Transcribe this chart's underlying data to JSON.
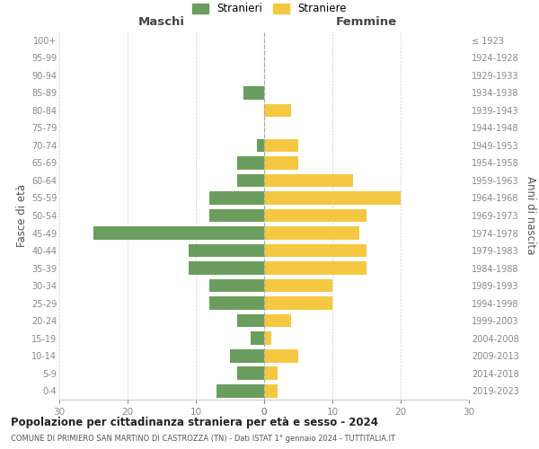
{
  "age_groups": [
    "100+",
    "95-99",
    "90-94",
    "85-89",
    "80-84",
    "75-79",
    "70-74",
    "65-69",
    "60-64",
    "55-59",
    "50-54",
    "45-49",
    "40-44",
    "35-39",
    "30-34",
    "25-29",
    "20-24",
    "15-19",
    "10-14",
    "5-9",
    "0-4"
  ],
  "birth_years": [
    "≤ 1923",
    "1924-1928",
    "1929-1933",
    "1934-1938",
    "1939-1943",
    "1944-1948",
    "1949-1953",
    "1954-1958",
    "1959-1963",
    "1964-1968",
    "1969-1973",
    "1974-1978",
    "1979-1983",
    "1984-1988",
    "1989-1993",
    "1994-1998",
    "1999-2003",
    "2004-2008",
    "2009-2013",
    "2014-2018",
    "2019-2023"
  ],
  "males": [
    0,
    0,
    0,
    3,
    0,
    0,
    1,
    4,
    4,
    8,
    8,
    25,
    11,
    11,
    8,
    8,
    4,
    2,
    5,
    4,
    7
  ],
  "females": [
    0,
    0,
    0,
    0,
    4,
    0,
    5,
    5,
    13,
    20,
    15,
    14,
    15,
    15,
    10,
    10,
    4,
    1,
    5,
    2,
    2
  ],
  "male_color": "#6b9e5e",
  "female_color": "#f5c842",
  "male_label": "Stranieri",
  "female_label": "Straniere",
  "title": "Popolazione per cittadinanza straniera per età e sesso - 2024",
  "subtitle": "COMUNE DI PRIMIERO SAN MARTINO DI CASTROZZA (TN) - Dati ISTAT 1° gennaio 2024 - TUTTITALIA.IT",
  "left_header": "Maschi",
  "right_header": "Femmine",
  "left_axis_label": "Fasce di età",
  "right_axis_label": "Anni di nascita",
  "xlim": 30,
  "background_color": "#ffffff",
  "grid_color": "#cccccc"
}
